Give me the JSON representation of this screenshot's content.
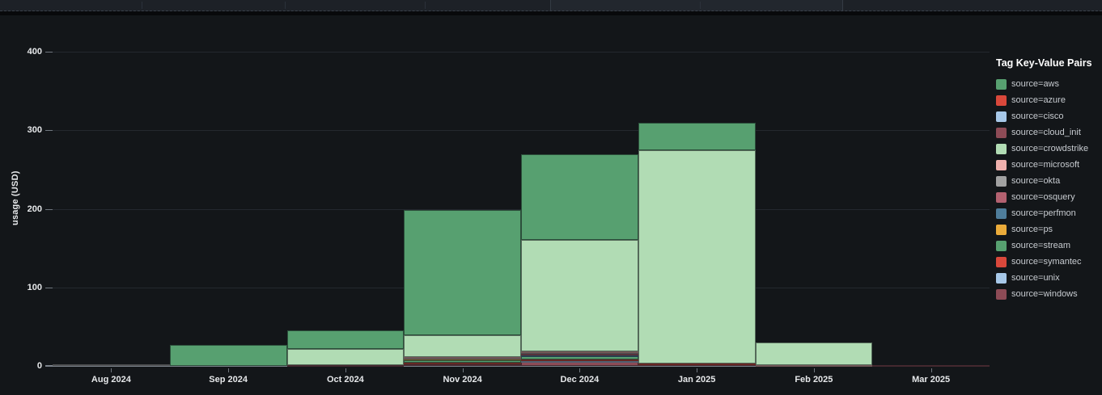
{
  "y_axis_title": "usage (USD)",
  "chart_data": {
    "type": "bar",
    "stacked": true,
    "title": "",
    "xlabel": "",
    "ylabel": "usage (USD)",
    "ylim": [
      0,
      400
    ],
    "yticks": [
      0,
      100,
      200,
      300,
      400
    ],
    "grid": true,
    "legend_position": "right",
    "legend_title": "Tag Key-Value Pairs",
    "categories": [
      "Aug 2024",
      "Sep 2024",
      "Oct 2024",
      "Nov 2024",
      "Dec 2024",
      "Jan 2025",
      "Feb 2025",
      "Mar 2025"
    ],
    "series": [
      {
        "label": "source=aws",
        "color": "#57a070",
        "values": [
          0,
          27,
          23,
          159,
          109,
          34,
          0,
          0
        ]
      },
      {
        "label": "source=azure",
        "color": "#d9483b",
        "values": [
          0,
          0,
          0,
          0,
          0,
          0,
          0,
          0
        ]
      },
      {
        "label": "source=cisco",
        "color": "#a7c8e8",
        "values": [
          0,
          0,
          0,
          0,
          0,
          0,
          0,
          0
        ]
      },
      {
        "label": "source=cloud_init",
        "color": "#8d4b56",
        "values": [
          0,
          0,
          0,
          0,
          0,
          0,
          0,
          0
        ]
      },
      {
        "label": "source=crowdstrike",
        "color": "#b1dcb4",
        "values": [
          0,
          0,
          21,
          28,
          141,
          272,
          28,
          0
        ]
      },
      {
        "label": "source=microsoft",
        "color": "#efb0ad",
        "values": [
          0,
          0,
          0,
          1,
          2,
          0,
          1.5,
          0
        ]
      },
      {
        "label": "source=okta",
        "color": "#a1a1a1",
        "values": [
          2,
          0,
          0,
          1,
          1.5,
          0,
          0,
          0
        ]
      },
      {
        "label": "source=osquery",
        "color": "#b36170",
        "values": [
          0,
          0,
          0,
          0,
          2,
          0,
          0,
          0
        ]
      },
      {
        "label": "source=perfmon",
        "color": "#4e7d9b",
        "values": [
          0,
          0,
          0,
          0,
          0.5,
          0,
          0,
          0
        ]
      },
      {
        "label": "source=ps",
        "color": "#eaab3a",
        "values": [
          0,
          0,
          0,
          2,
          1,
          0,
          0,
          0
        ]
      },
      {
        "label": "source=stream",
        "color": "#57a070",
        "values": [
          0,
          0,
          0,
          2.5,
          4,
          0,
          0,
          0
        ]
      },
      {
        "label": "source=symantec",
        "color": "#d9483b",
        "values": [
          0,
          0,
          0,
          2,
          2,
          0.5,
          0,
          0
        ]
      },
      {
        "label": "source=unix",
        "color": "#a7c8e8",
        "values": [
          0,
          0,
          0,
          0,
          0.5,
          0,
          0,
          0
        ]
      },
      {
        "label": "source=windows",
        "color": "#8d4b56",
        "values": [
          0,
          0,
          1,
          2.5,
          5.5,
          2.5,
          0,
          1
        ]
      }
    ]
  }
}
